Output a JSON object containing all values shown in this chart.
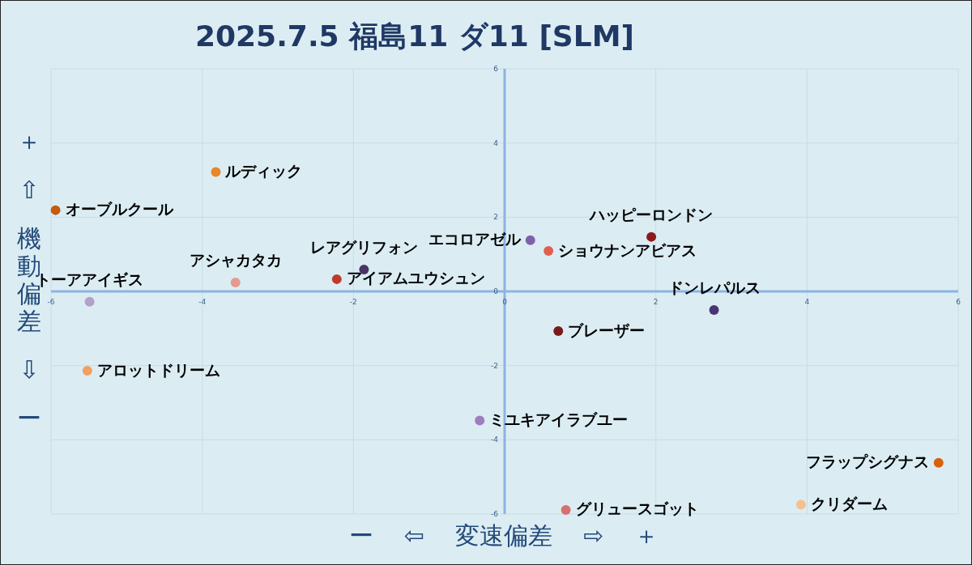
{
  "chart_data": {
    "type": "scatter",
    "title": "2025.7.5 福島11 ダ11 [SLM]",
    "xlabel": "ー ⇦ 変速偏差 ⇨ ＋",
    "ylabel": "＋ ⇧ 機動偏差 ⇩ ー",
    "xlim": [
      -6,
      6
    ],
    "ylim": [
      -6,
      6
    ],
    "xticks": [
      -6,
      -4,
      -2,
      0,
      2,
      4,
      6
    ],
    "yticks": [
      -6,
      -4,
      -2,
      0,
      2,
      4,
      6
    ],
    "grid": true,
    "marker": "circle",
    "series": [
      {
        "name": "ルディック",
        "color": "#e8862a",
        "x": [
          -3.82
        ],
        "values": [
          3.22
        ]
      },
      {
        "name": "オーブルクール",
        "color": "#c55a11",
        "x": [
          -5.94
        ],
        "values": [
          2.19
        ]
      },
      {
        "name": "アシャカタカ",
        "color": "#e59a90",
        "x": [
          -3.56
        ],
        "values": [
          0.24
        ]
      },
      {
        "name": "アイアムユウシュン",
        "color": "#c0392b",
        "x": [
          -2.22
        ],
        "values": [
          0.33
        ]
      },
      {
        "name": "レアグリフォン",
        "color": "#4b3565",
        "x": [
          -1.86
        ],
        "values": [
          0.59
        ]
      },
      {
        "name": "トーアアイギス",
        "color": "#b4a0c8",
        "x": [
          -5.49
        ],
        "values": [
          -0.28
        ]
      },
      {
        "name": "アロットドリーム",
        "color": "#f0a060",
        "x": [
          -5.52
        ],
        "values": [
          -2.14
        ]
      },
      {
        "name": "ミユキアイラブユー",
        "color": "#9e7cc0",
        "x": [
          -0.33
        ],
        "values": [
          -3.48
        ]
      },
      {
        "name": "エコロアゼル",
        "color": "#8060a8",
        "x": [
          0.34
        ],
        "values": [
          1.38
        ]
      },
      {
        "name": "ショウナンアビアス",
        "color": "#e06050",
        "x": [
          0.58
        ],
        "values": [
          1.09
        ]
      },
      {
        "name": "ハッピーロンドン",
        "color": "#8b1a1a",
        "x": [
          1.94
        ],
        "values": [
          1.47
        ]
      },
      {
        "name": "ドンレパルス",
        "color": "#4b3570",
        "x": [
          2.77
        ],
        "values": [
          -0.5
        ]
      },
      {
        "name": "ブレーザー",
        "color": "#7a1a1a",
        "x": [
          0.71
        ],
        "values": [
          -1.07
        ]
      },
      {
        "name": "フラップシグナス",
        "color": "#d9600a",
        "x": [
          5.74
        ],
        "values": [
          -4.62
        ]
      },
      {
        "name": "クリダーム",
        "color": "#f5c090",
        "x": [
          3.92
        ],
        "values": [
          -5.75
        ]
      },
      {
        "name": "グリュースゴット",
        "color": "#d87070",
        "x": [
          0.81
        ],
        "values": [
          -5.89
        ]
      }
    ]
  }
}
